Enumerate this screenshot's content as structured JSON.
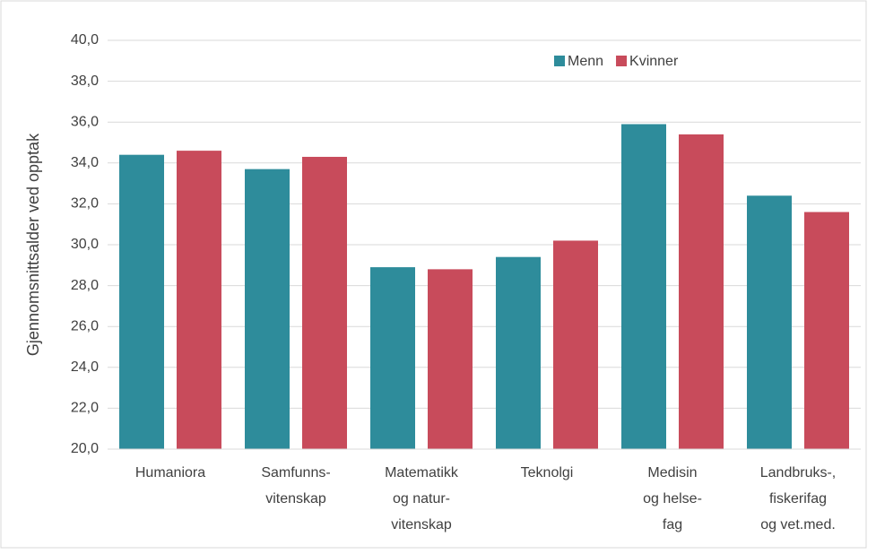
{
  "chart_data": {
    "type": "bar",
    "y_label": "Gjennomsnittsalder ved opptak",
    "categories": [
      [
        "Humaniora"
      ],
      [
        "Samfunns-",
        "vitenskap"
      ],
      [
        "Matematikk",
        "og natur-",
        "vitenskap"
      ],
      [
        "Teknolgi"
      ],
      [
        "Medisin",
        "og helse-",
        "fag"
      ],
      [
        "Landbruks-,",
        "fiskerifag",
        "og vet.med."
      ]
    ],
    "series": [
      {
        "name": "Menn",
        "color": "#2e8c9b",
        "values": [
          34.4,
          33.7,
          28.9,
          29.4,
          35.9,
          32.4
        ]
      },
      {
        "name": "Kvinner",
        "color": "#c84b5b",
        "values": [
          34.6,
          34.3,
          28.8,
          30.2,
          35.4,
          31.6
        ]
      }
    ],
    "ylim": [
      20,
      40
    ],
    "yticks": [
      {
        "value": 20,
        "label": "20,0"
      },
      {
        "value": 22,
        "label": "22,0"
      },
      {
        "value": 24,
        "label": "24,0"
      },
      {
        "value": 26,
        "label": "26,0"
      },
      {
        "value": 28,
        "label": "28,0"
      },
      {
        "value": 30,
        "label": "30,0"
      },
      {
        "value": 32,
        "label": "32,0"
      },
      {
        "value": 34,
        "label": "34,0"
      },
      {
        "value": 36,
        "label": "36,0"
      },
      {
        "value": 38,
        "label": "38,0"
      },
      {
        "value": 40,
        "label": "40,0"
      }
    ],
    "grid": true,
    "legend": "top-right"
  }
}
